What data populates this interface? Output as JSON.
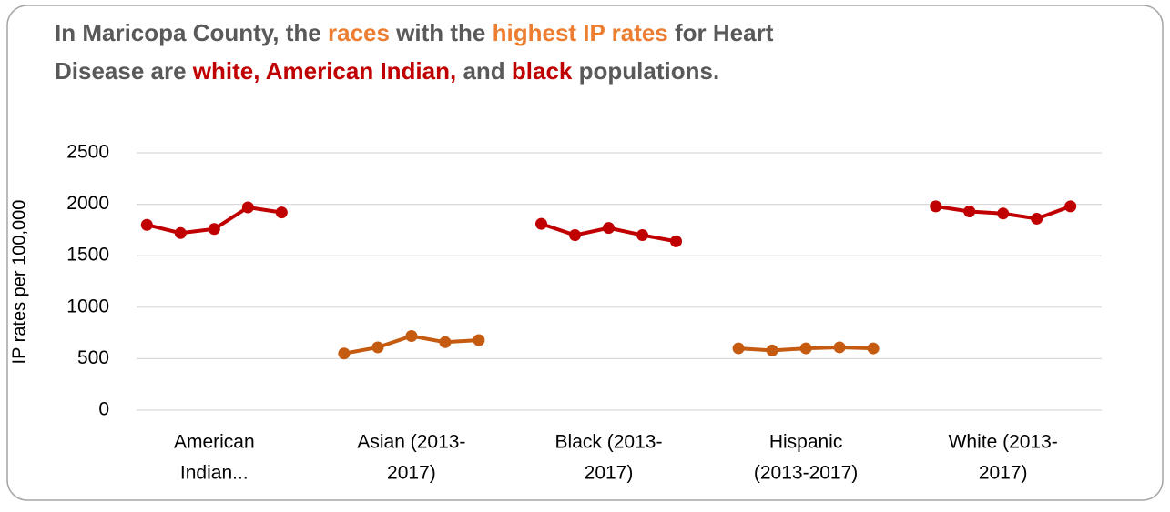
{
  "chart_data": {
    "type": "line",
    "title": [
      [
        {
          "text": "In Maricopa County, the ",
          "color": "#595959"
        },
        {
          "text": "races",
          "color": "#ed7d31"
        },
        {
          "text": " with the ",
          "color": "#595959"
        },
        {
          "text": "highest IP rates",
          "color": "#ed7d31"
        },
        {
          "text": " for Heart",
          "color": "#595959"
        }
      ],
      [
        {
          "text": "Disease are ",
          "color": "#595959"
        },
        {
          "text": "white, American Indian,",
          "color": "#c00000"
        },
        {
          "text": " and ",
          "color": "#595959"
        },
        {
          "text": "black",
          "color": "#c00000"
        },
        {
          "text": " populations.",
          "color": "#595959"
        }
      ]
    ],
    "y_label": "IP rates per 100,000",
    "categories": [
      [
        "American",
        "Indian..."
      ],
      [
        "Asian (2013-",
        "2017)"
      ],
      [
        "Black (2013-",
        "2017)"
      ],
      [
        "Hispanic",
        "(2013-2017)"
      ],
      [
        "White (2013-",
        "2017)"
      ]
    ],
    "groups": [
      {
        "color": "#c00000",
        "values": [
          1800,
          1720,
          1760,
          1970,
          1920
        ]
      },
      {
        "color": "#c55a11",
        "values": [
          550,
          610,
          720,
          660,
          680
        ]
      },
      {
        "color": "#c00000",
        "values": [
          1810,
          1700,
          1770,
          1700,
          1640
        ]
      },
      {
        "color": "#c55a11",
        "values": [
          600,
          580,
          600,
          610,
          600
        ]
      },
      {
        "color": "#c00000",
        "values": [
          1980,
          1930,
          1910,
          1860,
          1980
        ]
      }
    ],
    "ylim": [
      0,
      2500
    ],
    "yticks": [
      0,
      500,
      1000,
      1500,
      2000,
      2500
    ],
    "grid": true
  }
}
